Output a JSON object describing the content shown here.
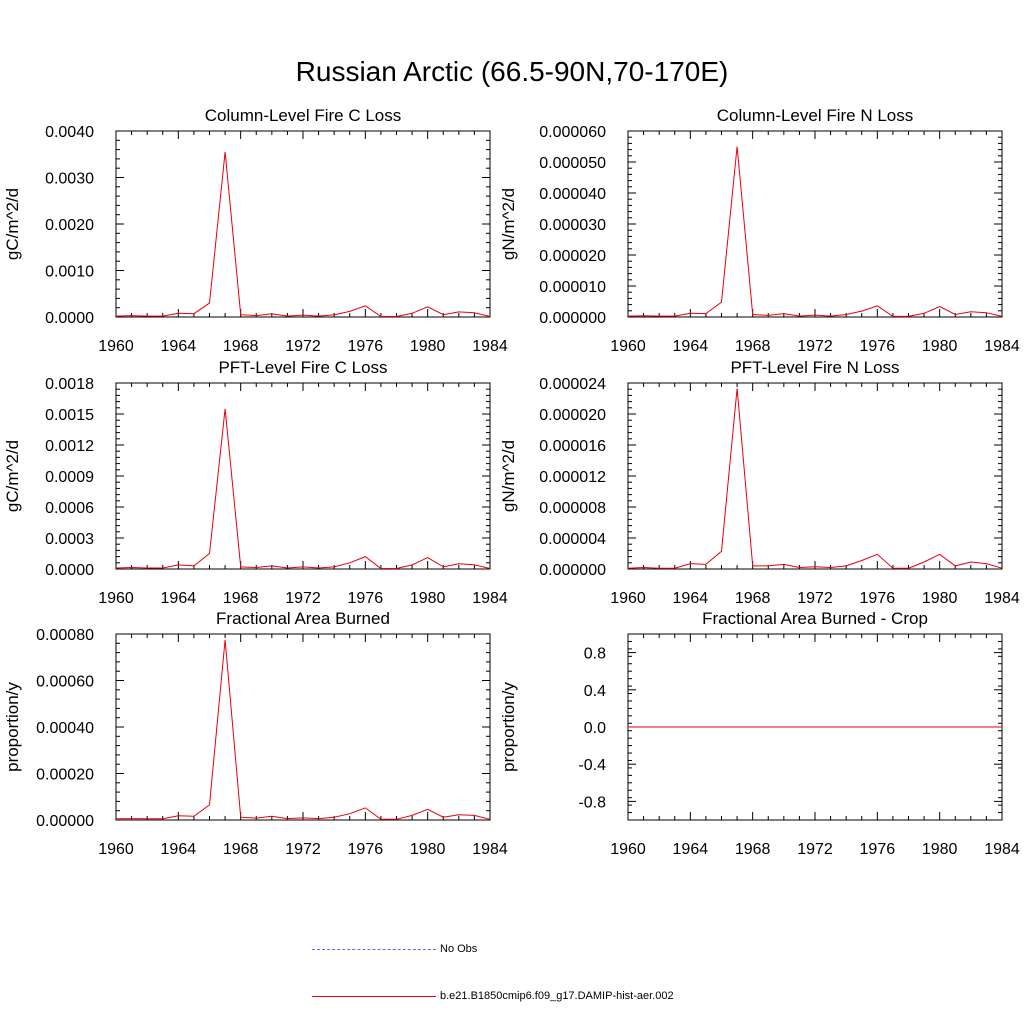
{
  "main_title": "Russian Arctic (66.5-90N,70-170E)",
  "legend": {
    "obs_label": "No Obs",
    "model_label": "b.e21.B1850cmip6.f09_g17.DAMIP-hist-aer.002",
    "obs_color": "#6a6ad8",
    "model_color": "#e8000b"
  },
  "chart_data": [
    {
      "type": "line",
      "title": "Column-Level Fire C Loss",
      "ylabel": "gC/m^2/d",
      "x": [
        1960,
        1961,
        1962,
        1963,
        1964,
        1965,
        1966,
        1967,
        1968,
        1969,
        1970,
        1971,
        1972,
        1973,
        1974,
        1975,
        1976,
        1977,
        1978,
        1979,
        1980,
        1981,
        1982,
        1983,
        1984
      ],
      "series": [
        {
          "values": [
            2e-05,
            3e-05,
            2e-05,
            2e-05,
            8e-05,
            7e-05,
            0.0003,
            0.00355,
            5e-05,
            3e-05,
            7e-05,
            2e-05,
            4e-05,
            2e-05,
            5e-05,
            0.00012,
            0.00024,
            1e-05,
            1e-05,
            8e-05,
            0.00022,
            5e-05,
            0.00011,
            9e-05,
            1e-05
          ]
        }
      ],
      "xlim": [
        1960,
        1984
      ],
      "ylim": [
        0,
        0.004
      ],
      "yticks": [
        0,
        0.001,
        0.002,
        0.003,
        0.004
      ],
      "ytick_labels": [
        "0.0000",
        "0.0010",
        "0.0020",
        "0.0030",
        "0.0040"
      ]
    },
    {
      "type": "line",
      "title": "Column-Level Fire N Loss",
      "ylabel": "gN/m^2/d",
      "x": [
        1960,
        1961,
        1962,
        1963,
        1964,
        1965,
        1966,
        1967,
        1968,
        1969,
        1970,
        1971,
        1972,
        1973,
        1974,
        1975,
        1976,
        1977,
        1978,
        1979,
        1980,
        1981,
        1982,
        1983,
        1984
      ],
      "series": [
        {
          "values": [
            3e-07,
            4e-07,
            3e-07,
            3e-07,
            1.2e-06,
            1.1e-06,
            4.8e-06,
            5.5e-05,
            8e-07,
            5e-07,
            1.1e-06,
            3e-07,
            6e-07,
            3e-07,
            8e-07,
            1.9e-06,
            3.6e-06,
            2e-07,
            2e-07,
            1.2e-06,
            3.4e-06,
            8e-07,
            1.7e-06,
            1.4e-06,
            2e-07
          ]
        }
      ],
      "xlim": [
        1960,
        1984
      ],
      "ylim": [
        0,
        6e-05
      ],
      "yticks": [
        0,
        1e-05,
        2e-05,
        3e-05,
        4e-05,
        5e-05,
        6e-05
      ],
      "ytick_labels": [
        "0.000000",
        "0.000010",
        "0.000020",
        "0.000030",
        "0.000040",
        "0.000050",
        "0.000060"
      ]
    },
    {
      "type": "line",
      "title": "PFT-Level Fire C Loss",
      "ylabel": "gC/m^2/d",
      "x": [
        1960,
        1961,
        1962,
        1963,
        1964,
        1965,
        1966,
        1967,
        1968,
        1969,
        1970,
        1971,
        1972,
        1973,
        1974,
        1975,
        1976,
        1977,
        1978,
        1979,
        1980,
        1981,
        1982,
        1983,
        1984
      ],
      "series": [
        {
          "values": [
            1e-05,
            1.5e-05,
            1e-05,
            1e-05,
            4e-05,
            3e-05,
            0.00015,
            0.00155,
            2e-05,
            1.5e-05,
            3e-05,
            1e-05,
            2e-05,
            1e-05,
            2e-05,
            6e-05,
            0.00012,
            5e-06,
            5e-06,
            4e-05,
            0.00011,
            2e-05,
            5e-05,
            4e-05,
            5e-06
          ]
        }
      ],
      "xlim": [
        1960,
        1984
      ],
      "ylim": [
        0,
        0.0018
      ],
      "yticks": [
        0,
        0.0003,
        0.0006,
        0.0009,
        0.0012,
        0.0015,
        0.0018
      ],
      "ytick_labels": [
        "0.0000",
        "0.0003",
        "0.0006",
        "0.0009",
        "0.0012",
        "0.0015",
        "0.0018"
      ]
    },
    {
      "type": "line",
      "title": "PFT-Level Fire N Loss",
      "ylabel": "gN/m^2/d",
      "x": [
        1960,
        1961,
        1962,
        1963,
        1964,
        1965,
        1966,
        1967,
        1968,
        1969,
        1970,
        1971,
        1972,
        1973,
        1974,
        1975,
        1976,
        1977,
        1978,
        1979,
        1980,
        1981,
        1982,
        1983,
        1984
      ],
      "series": [
        {
          "values": [
            1e-07,
            2e-07,
            1e-07,
            1e-07,
            7e-07,
            6e-07,
            2.3e-06,
            2.33e-05,
            4e-07,
            4e-07,
            6e-07,
            2e-07,
            3e-07,
            2e-07,
            4e-07,
            1.1e-06,
            1.9e-06,
            1e-07,
            1e-07,
            9e-07,
            1.9e-06,
            4e-07,
            9e-07,
            7e-07,
            1e-07
          ]
        }
      ],
      "xlim": [
        1960,
        1984
      ],
      "ylim": [
        0,
        2.4e-05
      ],
      "yticks": [
        0,
        4e-06,
        8e-06,
        1.2e-05,
        1.6e-05,
        2e-05,
        2.4e-05
      ],
      "ytick_labels": [
        "0.000000",
        "0.000004",
        "0.000008",
        "0.000012",
        "0.000016",
        "0.000020",
        "0.000024"
      ]
    },
    {
      "type": "line",
      "title": "Fractional Area Burned",
      "ylabel": "proportion/y",
      "x": [
        1960,
        1961,
        1962,
        1963,
        1964,
        1965,
        1966,
        1967,
        1968,
        1969,
        1970,
        1971,
        1972,
        1973,
        1974,
        1975,
        1976,
        1977,
        1978,
        1979,
        1980,
        1981,
        1982,
        1983,
        1984
      ],
      "series": [
        {
          "values": [
            5e-06,
            6e-06,
            5e-06,
            5e-06,
            1.8e-05,
            1.6e-05,
            6.5e-05,
            0.000775,
            1.2e-05,
            8e-06,
            1.6e-05,
            6e-06,
            9e-06,
            6e-06,
            1.2e-05,
            2.7e-05,
            5.2e-05,
            3e-06,
            3e-06,
            2e-05,
            4.6e-05,
            1.2e-05,
            2.3e-05,
            2e-05,
            3e-06
          ]
        }
      ],
      "xlim": [
        1960,
        1984
      ],
      "ylim": [
        0,
        0.0008
      ],
      "yticks": [
        0,
        0.0002,
        0.0004,
        0.0006,
        0.0008
      ],
      "ytick_labels": [
        "0.00000",
        "0.00020",
        "0.00040",
        "0.00060",
        "0.00080"
      ]
    },
    {
      "type": "line",
      "title": "Fractional Area Burned - Crop",
      "ylabel": "proportion/y",
      "x": [
        1960,
        1961,
        1962,
        1963,
        1964,
        1965,
        1966,
        1967,
        1968,
        1969,
        1970,
        1971,
        1972,
        1973,
        1974,
        1975,
        1976,
        1977,
        1978,
        1979,
        1980,
        1981,
        1982,
        1983,
        1984
      ],
      "series": [
        {
          "values": [
            0,
            0,
            0,
            0,
            0,
            0,
            0,
            0,
            0,
            0,
            0,
            0,
            0,
            0,
            0,
            0,
            0,
            0,
            0,
            0,
            0,
            0,
            0,
            0,
            0
          ]
        }
      ],
      "xlim": [
        1960,
        1984
      ],
      "ylim": [
        -1,
        1
      ],
      "yticks": [
        -0.8,
        -0.4,
        0,
        0.4,
        0.8
      ],
      "ytick_labels": [
        "-0.8",
        "-0.4",
        "0.0",
        "0.4",
        "0.8"
      ]
    }
  ],
  "xtick_values": [
    1960,
    1964,
    1968,
    1972,
    1976,
    1980,
    1984
  ],
  "xtick_labels": [
    "1960",
    "1964",
    "1968",
    "1972",
    "1976",
    "1980",
    "1984"
  ]
}
